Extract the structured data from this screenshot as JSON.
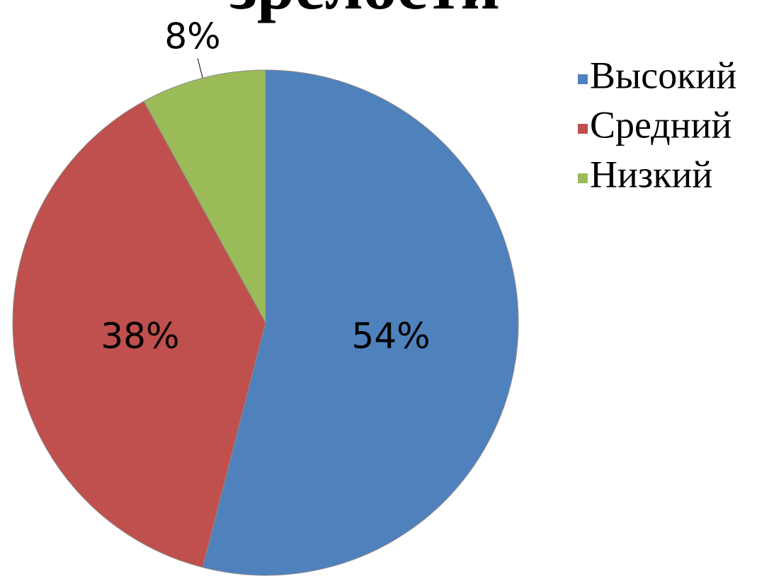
{
  "chart_data": {
    "type": "pie",
    "title": "зрелости",
    "categories": [
      "Высокий",
      "Средний",
      "Низкий"
    ],
    "values": [
      54,
      38,
      8
    ],
    "value_labels": [
      "54%",
      "38%",
      "8%"
    ],
    "colors": [
      "#4f81bd",
      "#c0504d",
      "#9bbb59"
    ],
    "legend": "right"
  }
}
